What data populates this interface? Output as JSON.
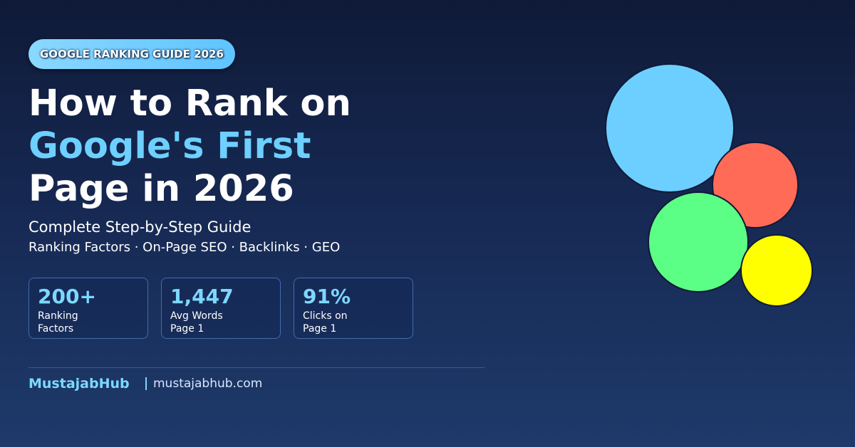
{
  "badge": "GOOGLE RANKING GUIDE 2026",
  "title": {
    "lines": [
      "How to Rank on",
      "Google's First",
      "Page in 2026"
    ]
  },
  "subtitle": "Complete Step-by-Step Guide",
  "topics": "Ranking Factors · On-Page SEO · Backlinks · GEO",
  "stats": [
    {
      "value": "200+",
      "label": [
        "Ranking",
        "Factors"
      ]
    },
    {
      "value": "1,447",
      "label": [
        "Avg Words",
        "Page 1"
      ]
    },
    {
      "value": "91%",
      "label": [
        "Clicks on",
        "Page 1"
      ]
    }
  ],
  "footer": {
    "brand": "MustajabHub",
    "url": "mustajabhub.com"
  }
}
